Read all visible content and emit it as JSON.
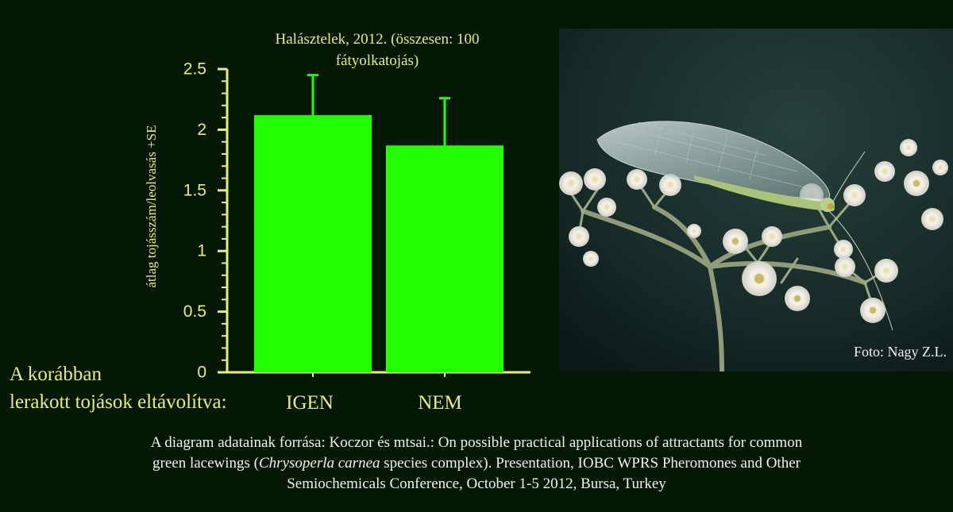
{
  "chart_data": {
    "type": "bar",
    "title_line1": "Halásztelek, 2012. (összesen: 100",
    "title_line2": "fátyolkatojás)",
    "ylabel": "átlag tojásszám/leolvasás +SE",
    "categories": [
      "IGEN",
      "NEM"
    ],
    "values": [
      2.12,
      1.87
    ],
    "error_plus": [
      0.33,
      0.39
    ],
    "ylim": [
      0,
      2.5
    ],
    "yticks": [
      "0",
      "0.5",
      "1",
      "1.5",
      "2",
      "2.5"
    ],
    "grid": false,
    "legend": "none",
    "colors": {
      "bar": "#22ff00",
      "error": "#22ff00",
      "axis": "#e8ee7c",
      "text": "#e8ee7c",
      "background": "#041804"
    }
  },
  "category_caption_line1": "A korábban",
  "category_caption_line2": "lerakott tojások eltávolítva:",
  "photo": {
    "subject": "green lacewing on white flower umbel",
    "credit": "Foto: Nagy Z.L."
  },
  "source": {
    "line1": "A diagram adatainak forrása: Koczor és mtsai.: On possible practical applications of attractants for common",
    "line2_before": "green lacewings (",
    "line2_italic": "Chrysoperla carnea",
    "line2_after": " species complex). Presentation, IOBC WPRS Pheromones and Other",
    "line3": "Semiochemicals Conference, October 1-5 2012, Bursa, Turkey"
  }
}
